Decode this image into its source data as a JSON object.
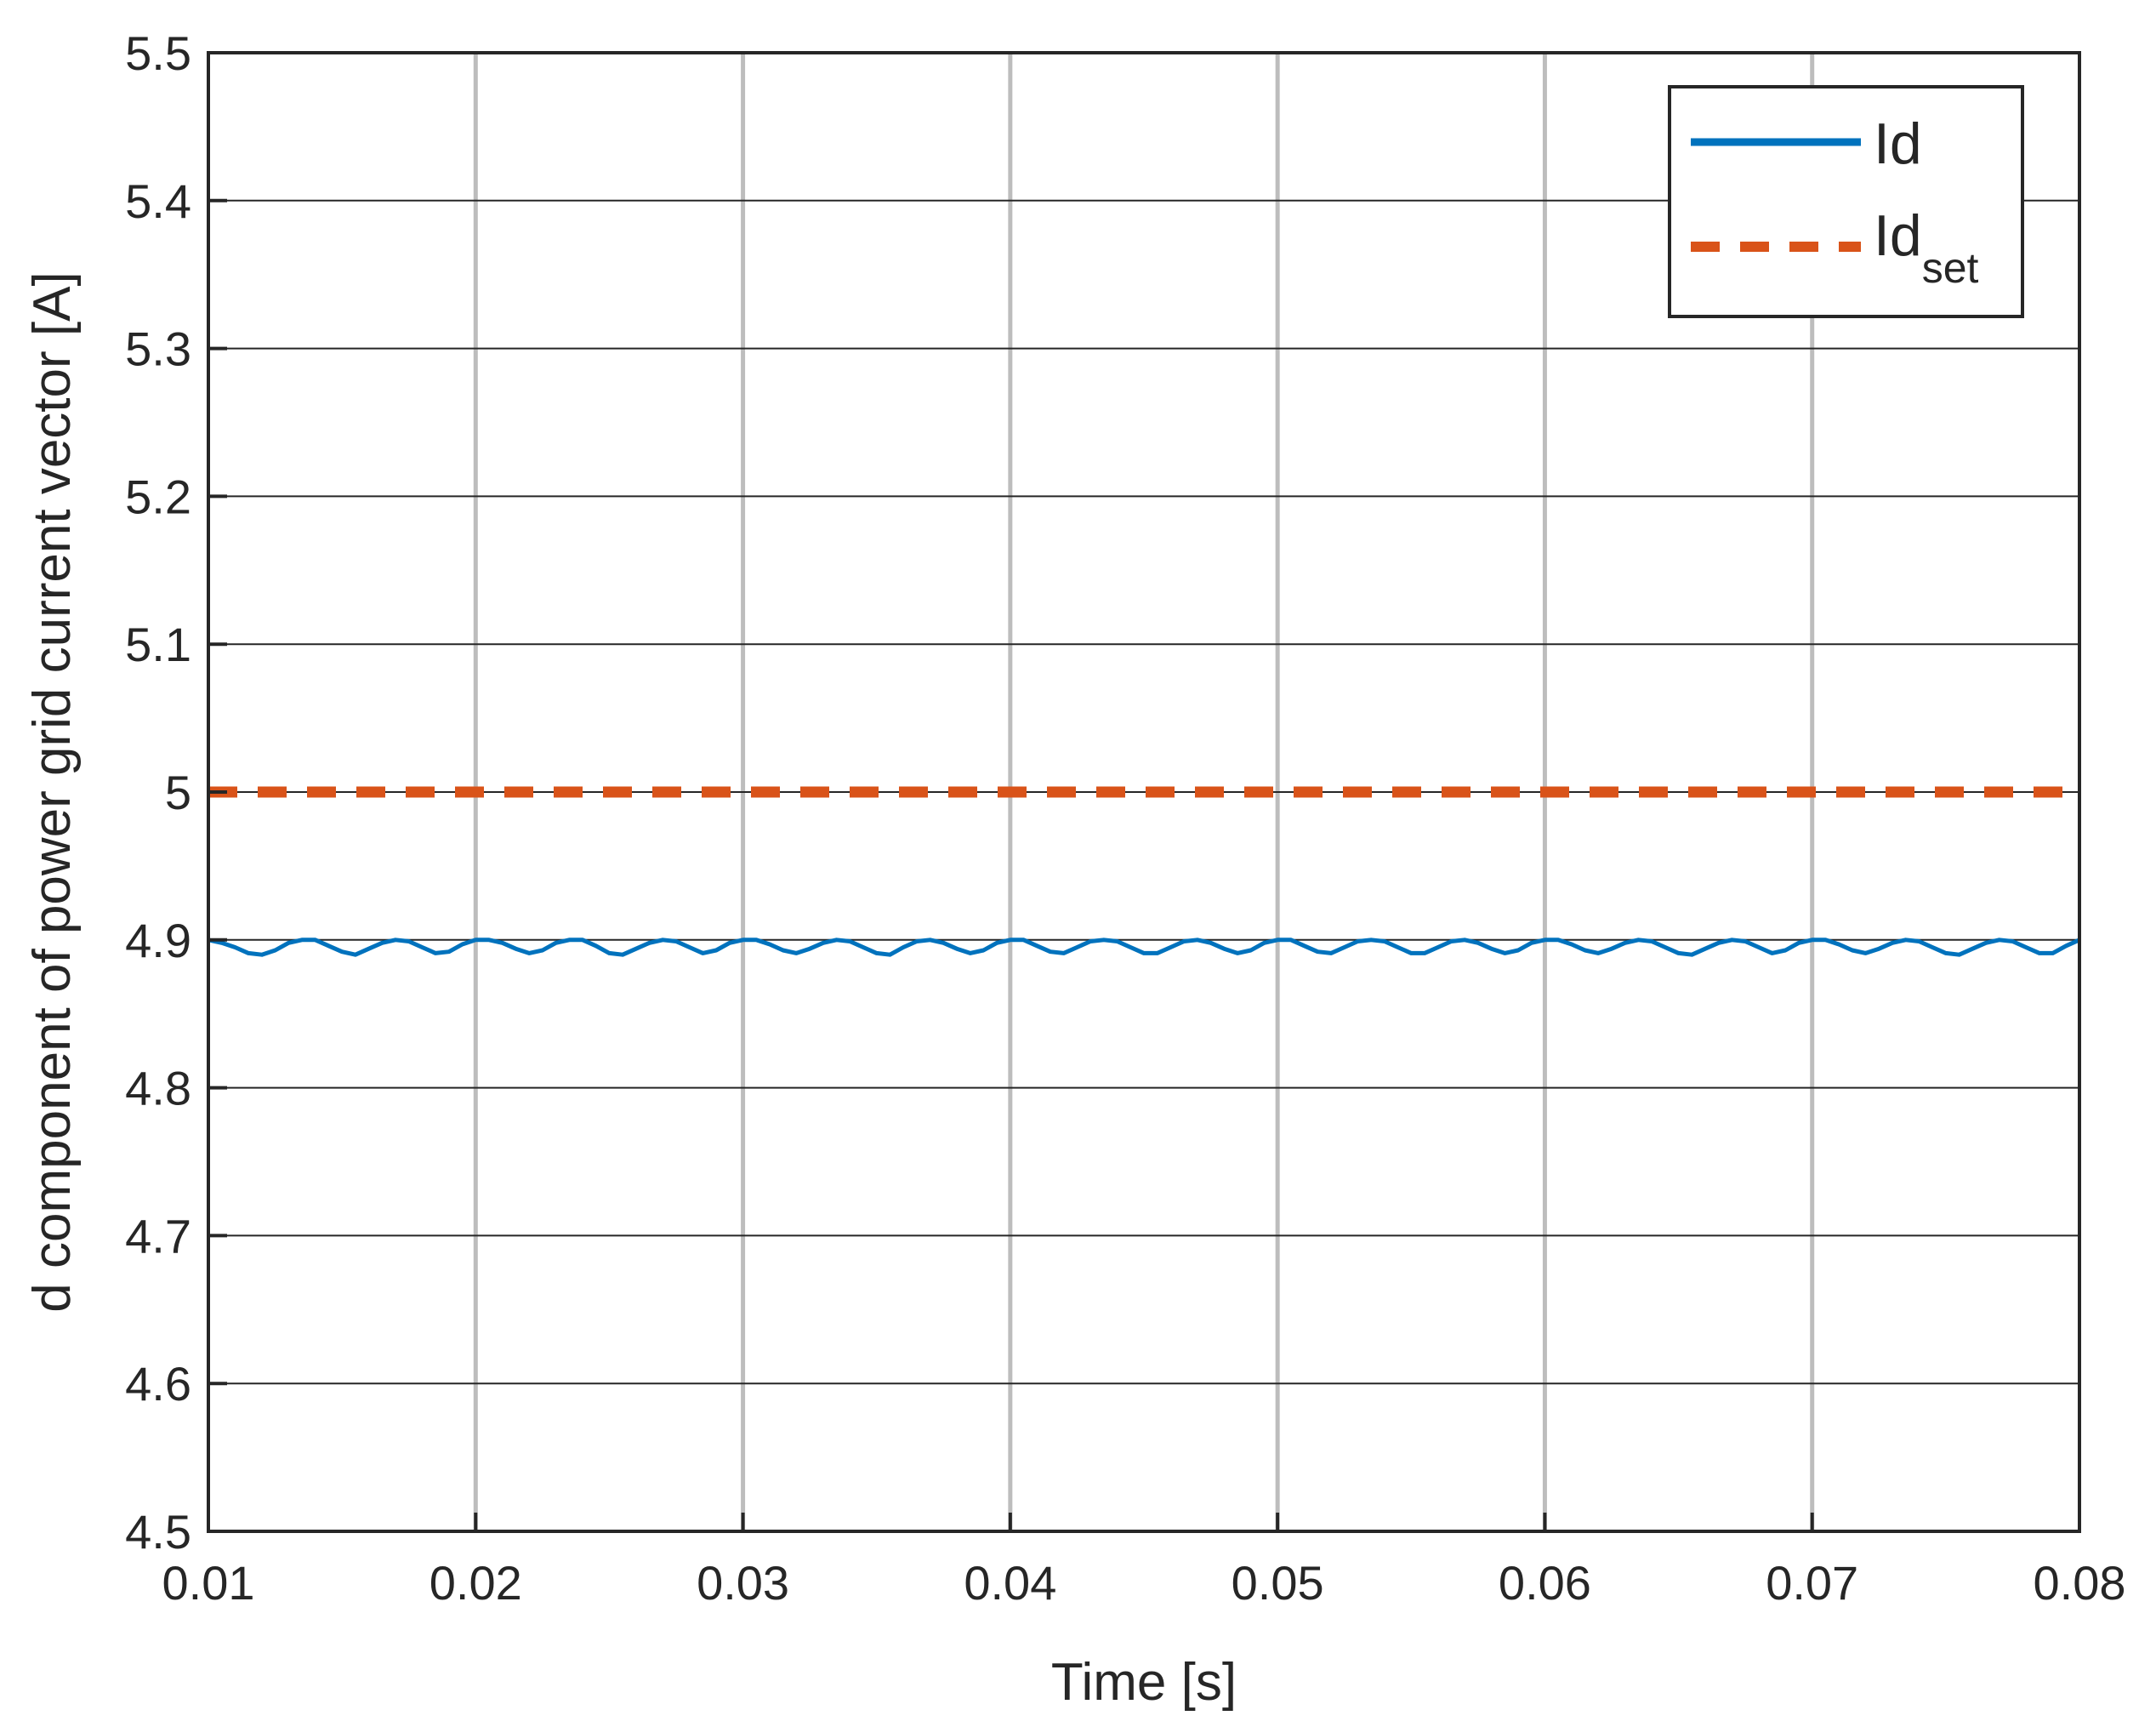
{
  "chart_data": {
    "type": "line",
    "xlabel": "Time [s]",
    "ylabel": "d component of power grid current vector [A]",
    "xlim": [
      0.01,
      0.08
    ],
    "ylim": [
      4.5,
      5.5
    ],
    "x_ticks": [
      0.01,
      0.02,
      0.03,
      0.04,
      0.05,
      0.06,
      0.07,
      0.08
    ],
    "x_tick_labels": [
      "0.01",
      "0.02",
      "0.03",
      "0.04",
      "0.05",
      "0.06",
      "0.07",
      "0.08"
    ],
    "y_ticks": [
      4.5,
      4.6,
      4.7,
      4.8,
      4.9,
      5.0,
      5.1,
      5.2,
      5.3,
      5.4,
      5.5
    ],
    "y_tick_labels": [
      "4.5",
      "4.6",
      "4.7",
      "4.8",
      "4.9",
      "5",
      "5.1",
      "5.2",
      "5.3",
      "5.4",
      "5.5"
    ],
    "grid": true,
    "legend_position": "top-right",
    "series": [
      {
        "name": "Id",
        "color": "#0072BD",
        "style": "solid",
        "x": [
          0.01,
          0.0105,
          0.011,
          0.0115,
          0.012,
          0.0125,
          0.013,
          0.0135,
          0.014,
          0.0145,
          0.015,
          0.0155,
          0.016,
          0.0165,
          0.017,
          0.0175,
          0.018,
          0.0185,
          0.019,
          0.0195,
          0.02,
          0.0205,
          0.021,
          0.0215,
          0.022,
          0.0225,
          0.023,
          0.0235,
          0.024,
          0.0245,
          0.025,
          0.0255,
          0.026,
          0.0265,
          0.027,
          0.0275,
          0.028,
          0.0285,
          0.029,
          0.0295,
          0.03,
          0.0305,
          0.031,
          0.0315,
          0.032,
          0.0325,
          0.033,
          0.0335,
          0.034,
          0.0345,
          0.035,
          0.0355,
          0.036,
          0.0365,
          0.037,
          0.0375,
          0.038,
          0.0385,
          0.039,
          0.0395,
          0.04,
          0.0405,
          0.041,
          0.0415,
          0.042,
          0.0425,
          0.043,
          0.0435,
          0.044,
          0.0445,
          0.045,
          0.0455,
          0.046,
          0.0465,
          0.047,
          0.0475,
          0.048,
          0.0485,
          0.049,
          0.0495,
          0.05,
          0.0505,
          0.051,
          0.0515,
          0.052,
          0.0525,
          0.053,
          0.0535,
          0.054,
          0.0545,
          0.055,
          0.0555,
          0.056,
          0.0565,
          0.057,
          0.0575,
          0.058,
          0.0585,
          0.059,
          0.0595,
          0.06,
          0.0605,
          0.061,
          0.0615,
          0.062,
          0.0625,
          0.063,
          0.0635,
          0.064,
          0.0645,
          0.065,
          0.0655,
          0.066,
          0.0665,
          0.067,
          0.0675,
          0.068,
          0.0685,
          0.069,
          0.0695,
          0.07,
          0.0705,
          0.071,
          0.0715,
          0.072,
          0.0725,
          0.073,
          0.0735,
          0.074,
          0.0745,
          0.075,
          0.0755,
          0.076,
          0.0765,
          0.077,
          0.0775,
          0.078,
          0.0785,
          0.079,
          0.0795,
          0.08
        ],
        "values": [
          4.9,
          4.898,
          4.895,
          4.891,
          4.89,
          4.893,
          4.898,
          4.9,
          4.9,
          4.896,
          4.892,
          4.89,
          4.894,
          4.898,
          4.9,
          4.899,
          4.895,
          4.891,
          4.892,
          4.897,
          4.9,
          4.9,
          4.898,
          4.894,
          4.891,
          4.893,
          4.898,
          4.9,
          4.9,
          4.896,
          4.891,
          4.89,
          4.894,
          4.898,
          4.9,
          4.899,
          4.895,
          4.891,
          4.893,
          4.898,
          4.9,
          4.9,
          4.897,
          4.893,
          4.891,
          4.894,
          4.898,
          4.9,
          4.899,
          4.895,
          4.891,
          4.89,
          4.895,
          4.899,
          4.9,
          4.898,
          4.894,
          4.891,
          4.893,
          4.898,
          4.9,
          4.9,
          4.896,
          4.892,
          4.891,
          4.895,
          4.899,
          4.9,
          4.899,
          4.895,
          4.891,
          4.891,
          4.895,
          4.899,
          4.9,
          4.898,
          4.894,
          4.891,
          4.893,
          4.898,
          4.9,
          4.9,
          4.896,
          4.892,
          4.891,
          4.895,
          4.899,
          4.9,
          4.899,
          4.895,
          4.891,
          4.891,
          4.895,
          4.899,
          4.9,
          4.898,
          4.894,
          4.891,
          4.893,
          4.898,
          4.9,
          4.9,
          4.897,
          4.893,
          4.891,
          4.894,
          4.898,
          4.9,
          4.899,
          4.895,
          4.891,
          4.89,
          4.894,
          4.898,
          4.9,
          4.899,
          4.895,
          4.891,
          4.893,
          4.898,
          4.9,
          4.9,
          4.897,
          4.893,
          4.891,
          4.894,
          4.898,
          4.9,
          4.899,
          4.895,
          4.891,
          4.89,
          4.894,
          4.898,
          4.9,
          4.899,
          4.895,
          4.891,
          4.891,
          4.896,
          4.9
        ]
      },
      {
        "name": "Id",
        "name_subscript": "set",
        "color": "#D95319",
        "style": "dashed",
        "x": [
          0.01,
          0.08
        ],
        "values": [
          5.0,
          5.0
        ]
      }
    ]
  }
}
